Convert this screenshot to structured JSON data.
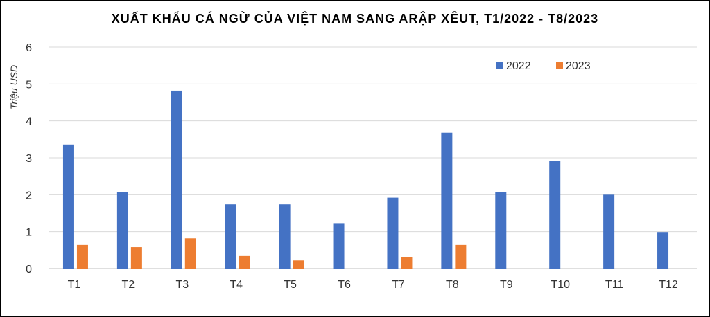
{
  "chart_data": {
    "type": "bar",
    "title": "XUẤT KHẨU CÁ NGỪ CỦA VIỆT NAM SANG ARẬP XÊUT, T1/2022 - T8/2023",
    "ylabel": "Triệu USD",
    "xlabel": "",
    "categories": [
      "T1",
      "T2",
      "T3",
      "T4",
      "T5",
      "T6",
      "T7",
      "T8",
      "T9",
      "T10",
      "T11",
      "T12"
    ],
    "ylim": [
      0,
      6
    ],
    "yticks": [
      "0",
      "1",
      "2",
      "3",
      "4",
      "5",
      "6"
    ],
    "grid": true,
    "legend_position": "top-right",
    "series": [
      {
        "name": "2022",
        "color": "#4472C4",
        "values": [
          3.36,
          2.07,
          4.82,
          1.74,
          1.74,
          1.23,
          1.92,
          3.68,
          2.07,
          2.92,
          2.0,
          0.99
        ]
      },
      {
        "name": "2023",
        "color": "#ED7D31",
        "values": [
          0.64,
          0.58,
          0.82,
          0.34,
          0.22,
          null,
          0.31,
          0.64,
          null,
          null,
          null,
          null
        ]
      }
    ]
  }
}
